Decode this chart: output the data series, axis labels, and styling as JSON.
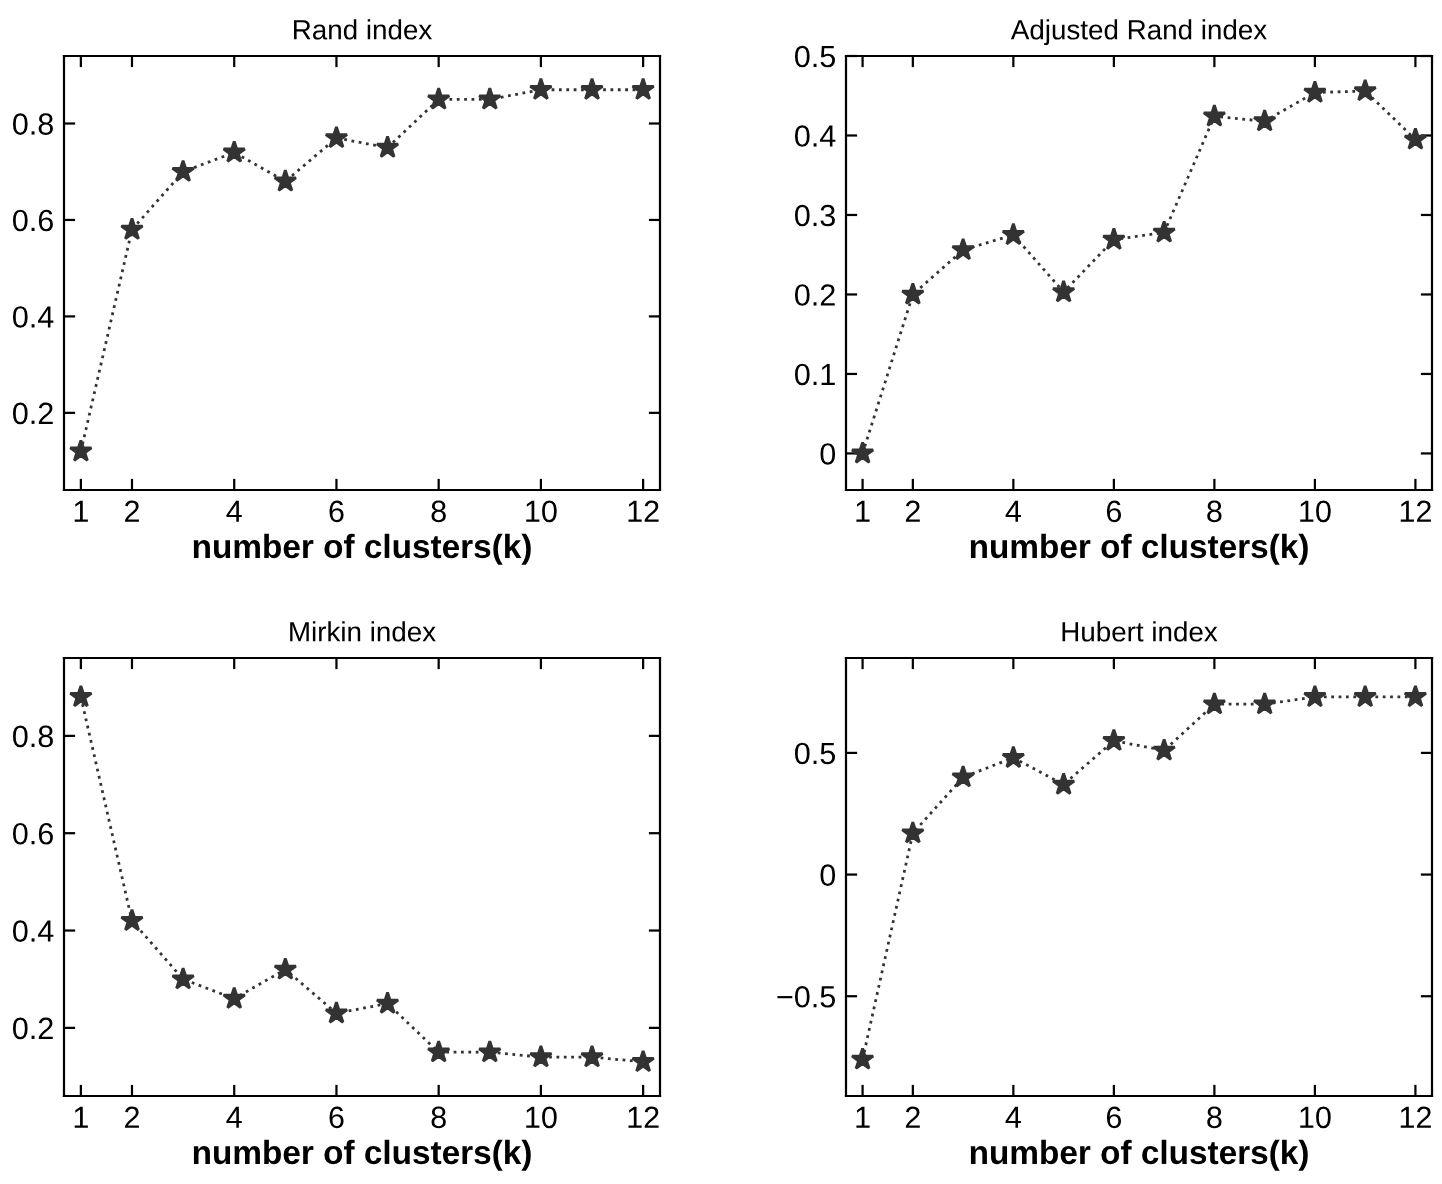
{
  "chart_data": [
    {
      "type": "line",
      "title": "Rand index",
      "xlabel": "number of clusters(k)",
      "x": [
        1,
        2,
        3,
        4,
        5,
        6,
        7,
        8,
        9,
        10,
        11,
        12
      ],
      "marker": "star",
      "line_style": "dotted",
      "grid": false,
      "xlim": [
        0.67,
        12.33
      ],
      "xticks": [
        1,
        2,
        4,
        6,
        8,
        10,
        12
      ],
      "ylim": [
        0.04,
        0.94
      ],
      "yticks": [
        0.2,
        0.4,
        0.6,
        0.8
      ],
      "series": [
        {
          "color": "#333333",
          "values": [
            0.12,
            0.58,
            0.7,
            0.74,
            0.68,
            0.77,
            0.75,
            0.85,
            0.85,
            0.87,
            0.87,
            0.87
          ]
        }
      ]
    },
    {
      "type": "line",
      "title": "Adjusted Rand index",
      "xlabel": "number of clusters(k)",
      "x": [
        1,
        2,
        3,
        4,
        5,
        6,
        7,
        8,
        9,
        10,
        11,
        12
      ],
      "marker": "star",
      "line_style": "dotted",
      "grid": false,
      "xlim": [
        0.67,
        12.33
      ],
      "xticks": [
        1,
        2,
        4,
        6,
        8,
        10,
        12
      ],
      "ylim": [
        -0.046,
        0.5
      ],
      "yticks": [
        0,
        0.1,
        0.2,
        0.3,
        0.4,
        0.5
      ],
      "series": [
        {
          "color": "#333333",
          "values": [
            0,
            0.2,
            0.256,
            0.275,
            0.203,
            0.269,
            0.278,
            0.424,
            0.418,
            0.454,
            0.456,
            0.395
          ]
        }
      ]
    },
    {
      "type": "line",
      "title": "Mirkin index",
      "xlabel": "number of clusters(k)",
      "x": [
        1,
        2,
        3,
        4,
        5,
        6,
        7,
        8,
        9,
        10,
        11,
        12
      ],
      "marker": "star",
      "line_style": "dotted",
      "grid": false,
      "xlim": [
        0.67,
        12.33
      ],
      "xticks": [
        1,
        2,
        4,
        6,
        8,
        10,
        12
      ],
      "ylim": [
        0.06,
        0.96
      ],
      "yticks": [
        0.2,
        0.4,
        0.6,
        0.8
      ],
      "series": [
        {
          "color": "#333333",
          "values": [
            0.88,
            0.42,
            0.3,
            0.26,
            0.32,
            0.23,
            0.25,
            0.15,
            0.15,
            0.14,
            0.14,
            0.13
          ]
        }
      ]
    },
    {
      "type": "line",
      "title": "Hubert index",
      "xlabel": "number of clusters(k)",
      "x": [
        1,
        2,
        3,
        4,
        5,
        6,
        7,
        8,
        9,
        10,
        11,
        12
      ],
      "marker": "star",
      "line_style": "dotted",
      "grid": false,
      "xlim": [
        0.67,
        12.33
      ],
      "xticks": [
        1,
        2,
        4,
        6,
        8,
        10,
        12
      ],
      "ylim": [
        -0.91,
        0.89
      ],
      "yticks": [
        -0.5,
        0,
        0.5
      ],
      "series": [
        {
          "color": "#333333",
          "values": [
            -0.76,
            0.17,
            0.4,
            0.48,
            0.37,
            0.55,
            0.51,
            0.7,
            0.7,
            0.73,
            0.73,
            0.73
          ]
        }
      ]
    }
  ]
}
